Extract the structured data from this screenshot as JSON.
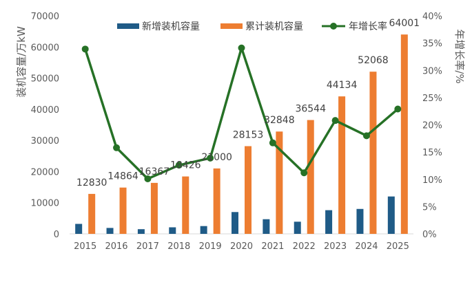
{
  "chart_data": {
    "type": "bar+line",
    "categories": [
      "2015",
      "2016",
      "2017",
      "2018",
      "2019",
      "2020",
      "2021",
      "2022",
      "2023",
      "2024",
      "2025"
    ],
    "series": [
      {
        "name": "新增装机容量",
        "type": "bar",
        "axis": "left",
        "color": "#1f5b87",
        "values": [
          3200,
          1900,
          1500,
          2100,
          2500,
          7000,
          4700,
          3900,
          7600,
          8000,
          12000
        ]
      },
      {
        "name": "累计装机容量",
        "type": "bar",
        "axis": "left",
        "color": "#ed7d31",
        "values": [
          12830,
          14864,
          16367,
          18426,
          21000,
          28153,
          32848,
          36544,
          44134,
          52068,
          64001
        ],
        "data_labels": [
          "12830",
          "14864",
          "16367",
          "18426",
          "21000",
          "28153",
          "32848",
          "36544",
          "44134",
          "52068",
          "64001"
        ]
      },
      {
        "name": "年增长率",
        "type": "line",
        "axis": "right",
        "color": "#267126",
        "values": [
          0.339,
          0.158,
          0.101,
          0.126,
          0.139,
          0.341,
          0.167,
          0.112,
          0.208,
          0.18,
          0.229
        ]
      }
    ],
    "ylabel": "装机容量/万kW",
    "ylabel_right": "年增长率/%",
    "ylim": [
      0,
      70000
    ],
    "y_ticks": [
      "0",
      "10000",
      "20000",
      "30000",
      "40000",
      "50000",
      "60000",
      "70000"
    ],
    "ylim_right": [
      0,
      0.4
    ],
    "y_right_ticks": [
      "0%",
      "5%",
      "10%",
      "15%",
      "20%",
      "25%",
      "30%",
      "35%",
      "40%"
    ],
    "legend_position": "top",
    "grid": false
  }
}
